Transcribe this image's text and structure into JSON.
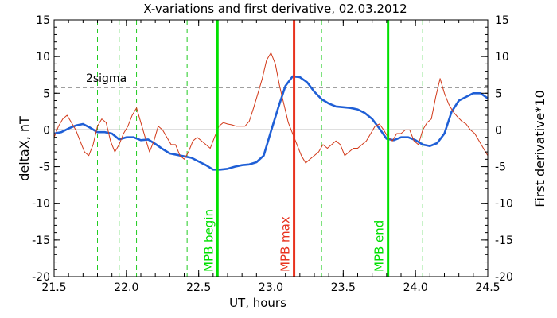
{
  "chart_data": {
    "type": "line",
    "title": "X-variations and first derivative, 02.03.2012",
    "xlabel": "UT, hours",
    "ylabel_left": "deltaX, nT",
    "ylabel_right": "First derivative*10",
    "xlim": [
      21.5,
      24.5
    ],
    "ylim": [
      -20,
      15
    ],
    "x_ticks": [
      "21.5",
      "22.0",
      "22.5",
      "23.0",
      "23.5",
      "24.0",
      "24.5"
    ],
    "y_ticks": [
      "-20",
      "-15",
      "-10",
      "-5",
      "0",
      "5",
      "10",
      "15"
    ],
    "colors": {
      "deltaX": "#1f5fd6",
      "derivative": "#d23a1a",
      "mpb": "#00e000",
      "mpb_max": "#e8321e",
      "dashed_green": "#22cc22"
    },
    "threshold": {
      "label": "2sigma",
      "value": 5.8
    },
    "zero_line": 0,
    "vlines_dashed": [
      21.8,
      21.95,
      22.07,
      22.42,
      23.35,
      24.05
    ],
    "vlines_solid": [
      {
        "x": 22.63,
        "label": "MPB begin",
        "color_key": "mpb"
      },
      {
        "x": 23.16,
        "label": "MPB max",
        "color_key": "mpb_max"
      },
      {
        "x": 23.81,
        "label": "MPB end",
        "color_key": "mpb"
      }
    ],
    "series": [
      {
        "key": "deltaX",
        "x": [
          21.5,
          21.55,
          21.6,
          21.65,
          21.7,
          21.75,
          21.8,
          21.85,
          21.9,
          21.95,
          22.0,
          22.05,
          22.1,
          22.15,
          22.2,
          22.25,
          22.3,
          22.35,
          22.4,
          22.45,
          22.5,
          22.55,
          22.6,
          22.65,
          22.7,
          22.75,
          22.8,
          22.85,
          22.9,
          22.95,
          23.0,
          23.05,
          23.1,
          23.15,
          23.2,
          23.25,
          23.3,
          23.35,
          23.4,
          23.45,
          23.5,
          23.55,
          23.6,
          23.65,
          23.7,
          23.75,
          23.8,
          23.85,
          23.9,
          23.95,
          24.0,
          24.05,
          24.1,
          24.15,
          24.2,
          24.25,
          24.3,
          24.35,
          24.4,
          24.45,
          24.5
        ],
        "values": [
          -0.5,
          -0.3,
          0.2,
          0.6,
          0.8,
          0.3,
          -0.3,
          -0.3,
          -0.5,
          -1.3,
          -1.0,
          -1.0,
          -1.4,
          -1.3,
          -1.9,
          -2.6,
          -3.2,
          -3.4,
          -3.6,
          -3.8,
          -4.3,
          -4.8,
          -5.4,
          -5.4,
          -5.3,
          -5.0,
          -4.8,
          -4.7,
          -4.4,
          -3.5,
          -0.2,
          3.0,
          6.0,
          7.3,
          7.2,
          6.5,
          5.2,
          4.2,
          3.6,
          3.2,
          3.1,
          3.0,
          2.8,
          2.3,
          1.5,
          0.2,
          -1.2,
          -1.4,
          -1.0,
          -1.0,
          -1.4,
          -2.0,
          -2.2,
          -1.8,
          -0.5,
          2.5,
          4.0,
          4.5,
          5.0,
          5.0,
          4.3
        ]
      },
      {
        "key": "derivative",
        "x": [
          21.5,
          21.53,
          21.56,
          21.59,
          21.62,
          21.65,
          21.68,
          21.71,
          21.74,
          21.77,
          21.8,
          21.83,
          21.86,
          21.89,
          21.92,
          21.95,
          21.98,
          22.01,
          22.04,
          22.07,
          22.1,
          22.13,
          22.16,
          22.19,
          22.22,
          22.25,
          22.28,
          22.31,
          22.34,
          22.37,
          22.4,
          22.43,
          22.46,
          22.49,
          22.52,
          22.55,
          22.58,
          22.61,
          22.64,
          22.67,
          22.7,
          22.73,
          22.76,
          22.79,
          22.82,
          22.85,
          22.88,
          22.91,
          22.94,
          22.97,
          23.0,
          23.03,
          23.06,
          23.09,
          23.12,
          23.15,
          23.18,
          23.21,
          23.24,
          23.27,
          23.3,
          23.33,
          23.36,
          23.39,
          23.42,
          23.45,
          23.48,
          23.51,
          23.54,
          23.57,
          23.6,
          23.63,
          23.66,
          23.69,
          23.72,
          23.75,
          23.78,
          23.81,
          23.84,
          23.87,
          23.9,
          23.93,
          23.96,
          23.99,
          24.02,
          24.05,
          24.08,
          24.11,
          24.14,
          24.17,
          24.2,
          24.23,
          24.26,
          24.29,
          24.32,
          24.35,
          24.38,
          24.41,
          24.44,
          24.47,
          24.5
        ],
        "values": [
          -1.0,
          0.5,
          1.5,
          2.0,
          1.0,
          0.0,
          -1.5,
          -3.0,
          -3.5,
          -2.0,
          0.5,
          1.5,
          1.0,
          -1.5,
          -3.0,
          -2.0,
          -0.5,
          0.5,
          2.0,
          3.0,
          1.0,
          -1.0,
          -3.0,
          -1.5,
          0.5,
          0.0,
          -1.0,
          -2.0,
          -2.0,
          -3.5,
          -4.0,
          -3.0,
          -1.5,
          -1.0,
          -1.5,
          -2.0,
          -2.5,
          -1.0,
          0.5,
          1.0,
          0.8,
          0.7,
          0.5,
          0.5,
          0.5,
          1.2,
          3.0,
          5.0,
          7.0,
          9.5,
          10.5,
          9.0,
          6.0,
          3.5,
          1.0,
          -0.5,
          -2.0,
          -3.5,
          -4.5,
          -4.0,
          -3.5,
          -3.0,
          -2.0,
          -2.5,
          -2.0,
          -1.5,
          -2.0,
          -3.5,
          -3.0,
          -2.5,
          -2.5,
          -2.0,
          -1.5,
          -0.5,
          0.5,
          0.8,
          0.0,
          -1.0,
          -1.5,
          -0.5,
          -0.5,
          0.0,
          0.0,
          -1.5,
          -2.0,
          0.0,
          1.0,
          1.5,
          4.5,
          7.0,
          5.0,
          3.5,
          2.5,
          1.8,
          1.2,
          0.8,
          0.0,
          -0.5,
          -1.5,
          -2.5,
          -3.5
        ]
      }
    ]
  }
}
